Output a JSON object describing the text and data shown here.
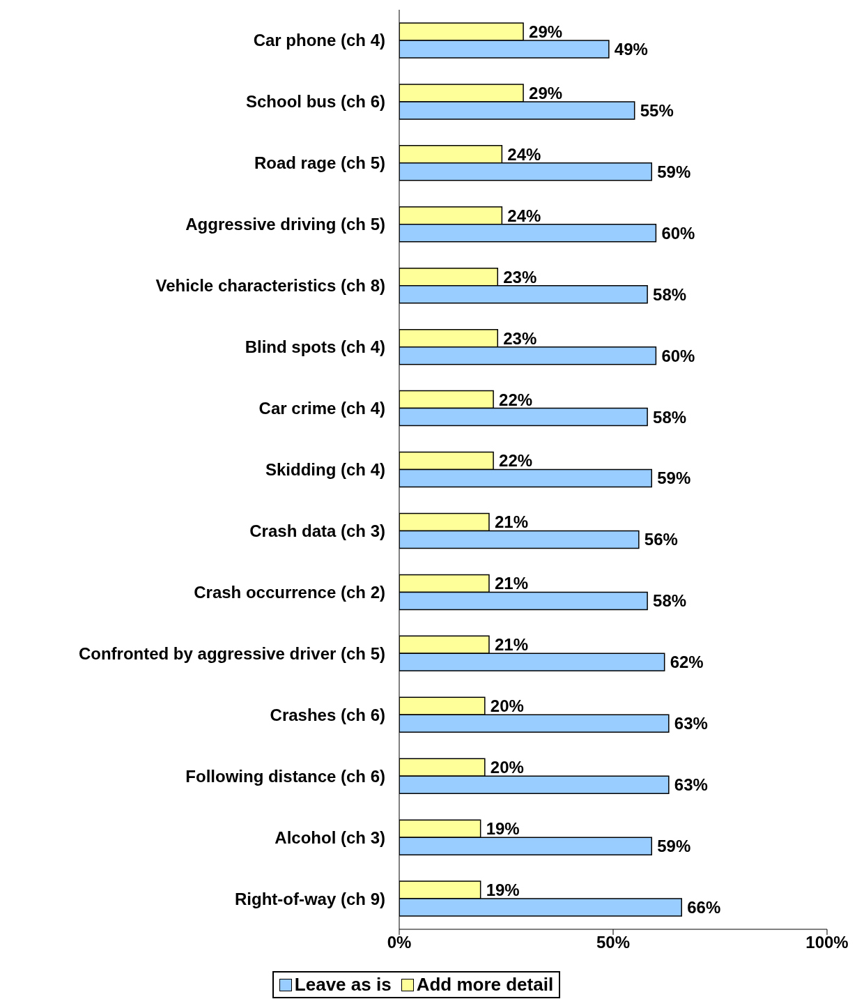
{
  "chart_data": {
    "type": "bar",
    "orientation": "horizontal",
    "categories": [
      "Car phone (ch 4)",
      "School bus (ch 6)",
      "Road rage (ch 5)",
      "Aggressive driving (ch 5)",
      "Vehicle characteristics (ch 8)",
      "Blind spots (ch 4)",
      "Car crime (ch 4)",
      "Skidding (ch 4)",
      "Crash data (ch 3)",
      "Crash occurrence (ch 2)",
      "Confronted by aggressive driver (ch 5)",
      "Crashes (ch 6)",
      "Following distance (ch 6)",
      "Alcohol (ch 3)",
      "Right-of-way (ch 9)"
    ],
    "series": [
      {
        "name": "Leave as is",
        "color": "#99ccff",
        "values": [
          49,
          55,
          59,
          60,
          58,
          60,
          58,
          59,
          56,
          58,
          62,
          63,
          63,
          59,
          66
        ],
        "value_labels": [
          "49%",
          "55%",
          "59%",
          "60%",
          "58%",
          "60%",
          "58%",
          "59%",
          "56%",
          "58%",
          "62%",
          "63%",
          "63%",
          "59%",
          "66%"
        ]
      },
      {
        "name": "Add more detail",
        "color": "#ffff99",
        "values": [
          29,
          29,
          24,
          24,
          23,
          23,
          22,
          22,
          21,
          21,
          21,
          20,
          20,
          19,
          19
        ],
        "value_labels": [
          "29%",
          "29%",
          "24%",
          "24%",
          "23%",
          "23%",
          "22%",
          "22%",
          "21%",
          "21%",
          "21%",
          "20%",
          "20%",
          "19%",
          "19%"
        ]
      }
    ],
    "xlim": [
      0,
      100
    ],
    "xticks": [
      {
        "value": 0,
        "label": "0%"
      },
      {
        "value": 50,
        "label": "50%"
      },
      {
        "value": 100,
        "label": "100%"
      }
    ],
    "grid": false,
    "legend": "bottom"
  }
}
